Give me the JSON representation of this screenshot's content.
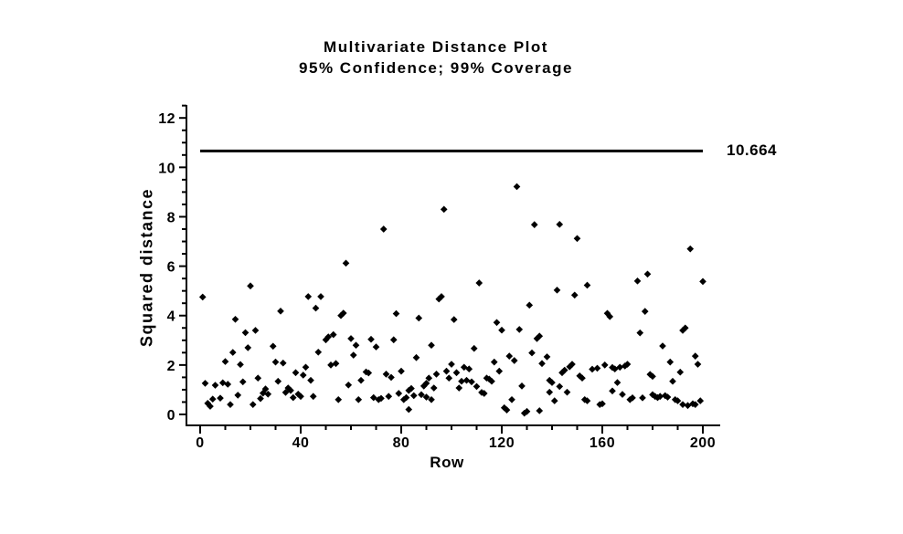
{
  "colors": {
    "background": "#ffffff",
    "foreground": "#000000"
  },
  "chart_data": {
    "type": "scatter",
    "title": "Multivariate Distance Plot",
    "subtitle": "95% Confidence; 99% Coverage",
    "xlabel": "Row",
    "ylabel": "Squared distance",
    "xlim": [
      0,
      200
    ],
    "ylim": [
      0,
      12
    ],
    "x_major_ticks": [
      0,
      40,
      80,
      120,
      160,
      200
    ],
    "x_minor_tick_step": 10,
    "y_major_ticks": [
      0,
      2,
      4,
      6,
      8,
      10,
      12
    ],
    "y_minor_tick_step": 0.5,
    "grid": false,
    "legend": null,
    "marker": {
      "shape": "diamond",
      "color": "#000000",
      "size": 7
    },
    "reference_line": {
      "value": 10.664,
      "label": "10.664"
    },
    "points": [
      [
        1,
        4.75
      ],
      [
        2,
        1.26
      ],
      [
        3,
        0.45
      ],
      [
        4,
        0.33
      ],
      [
        5,
        0.62
      ],
      [
        6,
        1.18
      ],
      [
        8,
        0.66
      ],
      [
        9,
        1.28
      ],
      [
        10,
        2.14
      ],
      [
        11,
        1.22
      ],
      [
        12,
        0.4
      ],
      [
        13,
        2.51
      ],
      [
        14,
        3.85
      ],
      [
        15,
        0.78
      ],
      [
        16,
        2.02
      ],
      [
        17,
        1.32
      ],
      [
        18,
        3.31
      ],
      [
        19,
        2.7
      ],
      [
        20,
        5.2
      ],
      [
        21,
        0.4
      ],
      [
        22,
        3.4
      ],
      [
        23,
        1.47
      ],
      [
        24,
        0.64
      ],
      [
        25,
        0.86
      ],
      [
        26,
        1.03
      ],
      [
        27,
        0.82
      ],
      [
        29,
        2.76
      ],
      [
        30,
        2.12
      ],
      [
        31,
        1.34
      ],
      [
        32,
        4.18
      ],
      [
        33,
        2.08
      ],
      [
        34,
        0.89
      ],
      [
        35,
        1.07
      ],
      [
        36,
        0.97
      ],
      [
        37,
        0.68
      ],
      [
        38,
        1.69
      ],
      [
        39,
        0.82
      ],
      [
        40,
        0.73
      ],
      [
        41,
        1.59
      ],
      [
        42,
        1.91
      ],
      [
        43,
        4.77
      ],
      [
        44,
        1.38
      ],
      [
        45,
        0.73
      ],
      [
        46,
        4.3
      ],
      [
        47,
        2.52
      ],
      [
        48,
        4.77
      ],
      [
        50,
        3.02
      ],
      [
        51,
        3.14
      ],
      [
        52,
        2.0
      ],
      [
        53,
        3.23
      ],
      [
        54,
        2.06
      ],
      [
        55,
        0.6
      ],
      [
        56,
        4.0
      ],
      [
        57,
        4.1
      ],
      [
        58,
        6.12
      ],
      [
        59,
        1.19
      ],
      [
        60,
        3.07
      ],
      [
        61,
        2.4
      ],
      [
        62,
        2.8
      ],
      [
        63,
        0.6
      ],
      [
        64,
        1.38
      ],
      [
        66,
        1.72
      ],
      [
        67,
        1.68
      ],
      [
        68,
        3.04
      ],
      [
        69,
        0.68
      ],
      [
        70,
        2.73
      ],
      [
        71,
        0.6
      ],
      [
        72,
        0.65
      ],
      [
        73,
        7.5
      ],
      [
        74,
        1.63
      ],
      [
        75,
        0.73
      ],
      [
        76,
        1.5
      ],
      [
        77,
        3.02
      ],
      [
        78,
        4.08
      ],
      [
        79,
        0.85
      ],
      [
        80,
        1.75
      ],
      [
        81,
        0.6
      ],
      [
        82,
        0.68
      ],
      [
        83,
        0.97
      ],
      [
        83,
        0.2
      ],
      [
        84,
        1.05
      ],
      [
        85,
        0.76
      ],
      [
        86,
        2.3
      ],
      [
        87,
        3.9
      ],
      [
        88,
        0.8
      ],
      [
        89,
        1.15
      ],
      [
        90,
        1.26
      ],
      [
        90,
        0.7
      ],
      [
        91,
        1.47
      ],
      [
        92,
        2.8
      ],
      [
        92,
        0.6
      ],
      [
        93,
        1.07
      ],
      [
        94,
        1.63
      ],
      [
        95,
        4.67
      ],
      [
        96,
        4.77
      ],
      [
        97,
        8.3
      ],
      [
        98,
        1.75
      ],
      [
        99,
        1.47
      ],
      [
        100,
        2.03
      ],
      [
        101,
        3.84
      ],
      [
        102,
        1.69
      ],
      [
        103,
        1.07
      ],
      [
        104,
        1.34
      ],
      [
        105,
        1.91
      ],
      [
        106,
        1.38
      ],
      [
        107,
        1.84
      ],
      [
        108,
        1.32
      ],
      [
        109,
        2.67
      ],
      [
        110,
        1.13
      ],
      [
        111,
        5.32
      ],
      [
        112,
        0.89
      ],
      [
        113,
        0.85
      ],
      [
        114,
        1.47
      ],
      [
        115,
        1.43
      ],
      [
        116,
        1.34
      ],
      [
        117,
        2.12
      ],
      [
        118,
        3.72
      ],
      [
        119,
        1.75
      ],
      [
        120,
        3.41
      ],
      [
        121,
        0.27
      ],
      [
        122,
        0.18
      ],
      [
        123,
        2.36
      ],
      [
        124,
        0.6
      ],
      [
        125,
        2.18
      ],
      [
        126,
        9.22
      ],
      [
        127,
        3.44
      ],
      [
        128,
        1.15
      ],
      [
        129,
        0.05
      ],
      [
        130,
        0.12
      ],
      [
        131,
        4.42
      ],
      [
        132,
        2.49
      ],
      [
        133,
        7.68
      ],
      [
        134,
        3.07
      ],
      [
        135,
        3.17
      ],
      [
        135,
        0.15
      ],
      [
        136,
        2.06
      ],
      [
        138,
        2.33
      ],
      [
        139,
        1.38
      ],
      [
        139,
        0.9
      ],
      [
        140,
        1.29
      ],
      [
        141,
        0.55
      ],
      [
        142,
        5.03
      ],
      [
        143,
        7.69
      ],
      [
        143,
        1.13
      ],
      [
        144,
        1.69
      ],
      [
        145,
        1.79
      ],
      [
        146,
        0.9
      ],
      [
        147,
        1.93
      ],
      [
        148,
        2.03
      ],
      [
        149,
        4.83
      ],
      [
        150,
        7.12
      ],
      [
        151,
        1.56
      ],
      [
        152,
        1.47
      ],
      [
        153,
        0.6
      ],
      [
        154,
        5.23
      ],
      [
        154,
        0.55
      ],
      [
        156,
        1.83
      ],
      [
        158,
        1.87
      ],
      [
        159,
        0.4
      ],
      [
        160,
        0.43
      ],
      [
        161,
        2.0
      ],
      [
        162,
        4.09
      ],
      [
        163,
        3.96
      ],
      [
        164,
        1.9
      ],
      [
        164,
        0.95
      ],
      [
        165,
        1.84
      ],
      [
        166,
        1.29
      ],
      [
        167,
        1.91
      ],
      [
        168,
        0.81
      ],
      [
        169,
        1.96
      ],
      [
        170,
        2.03
      ],
      [
        171,
        0.6
      ],
      [
        172,
        0.67
      ],
      [
        174,
        5.4
      ],
      [
        175,
        3.3
      ],
      [
        176,
        0.67
      ],
      [
        177,
        4.17
      ],
      [
        178,
        5.68
      ],
      [
        179,
        1.62
      ],
      [
        180,
        1.54
      ],
      [
        180,
        0.8
      ],
      [
        181,
        0.73
      ],
      [
        182,
        0.68
      ],
      [
        183,
        0.73
      ],
      [
        184,
        2.77
      ],
      [
        185,
        0.76
      ],
      [
        186,
        0.7
      ],
      [
        187,
        2.12
      ],
      [
        188,
        1.34
      ],
      [
        189,
        0.6
      ],
      [
        190,
        0.55
      ],
      [
        191,
        1.71
      ],
      [
        192,
        3.4
      ],
      [
        192,
        0.4
      ],
      [
        193,
        3.5
      ],
      [
        194,
        0.36
      ],
      [
        195,
        6.7
      ],
      [
        196,
        0.43
      ],
      [
        197,
        2.36
      ],
      [
        197,
        0.4
      ],
      [
        198,
        2.03
      ],
      [
        199,
        0.55
      ],
      [
        200,
        5.38
      ]
    ]
  }
}
